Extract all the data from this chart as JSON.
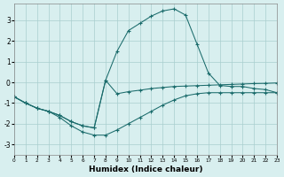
{
  "xlabel": "Humidex (Indice chaleur)",
  "bg_color": "#d8efef",
  "line_color": "#1a6b6b",
  "grid_color": "#aacece",
  "xlim": [
    0,
    23
  ],
  "ylim": [
    -3.5,
    3.8
  ],
  "xticks": [
    0,
    1,
    2,
    3,
    4,
    5,
    6,
    7,
    8,
    9,
    10,
    11,
    12,
    13,
    14,
    15,
    16,
    17,
    18,
    19,
    20,
    21,
    22,
    23
  ],
  "yticks": [
    -3,
    -2,
    -1,
    0,
    1,
    2,
    3
  ],
  "curve_upper_x": [
    0,
    1,
    2,
    3,
    4,
    5,
    6,
    7,
    8,
    9,
    10,
    11,
    12,
    13,
    14,
    15,
    16,
    17,
    18,
    19,
    20,
    21,
    22,
    23
  ],
  "curve_upper_y": [
    -0.7,
    -1.0,
    -1.25,
    -1.4,
    -1.6,
    -1.9,
    -2.1,
    -2.2,
    0.1,
    1.5,
    2.5,
    2.85,
    3.2,
    3.45,
    3.55,
    3.25,
    1.85,
    0.45,
    -0.15,
    -0.2,
    -0.2,
    -0.3,
    -0.35,
    -0.5
  ],
  "curve_lower_x": [
    0,
    1,
    2,
    3,
    4,
    5,
    6,
    7,
    8,
    9,
    10,
    11,
    12,
    13,
    14,
    15,
    16,
    17,
    18,
    19,
    20,
    21,
    22,
    23
  ],
  "curve_lower_y": [
    -0.7,
    -1.0,
    -1.25,
    -1.4,
    -1.6,
    -1.9,
    -2.1,
    -2.2,
    0.1,
    -0.55,
    -0.45,
    -0.38,
    -0.3,
    -0.25,
    -0.2,
    -0.18,
    -0.16,
    -0.14,
    -0.12,
    -0.1,
    -0.08,
    -0.06,
    -0.05,
    -0.03
  ],
  "curve_mid_x": [
    0,
    1,
    2,
    3,
    4,
    5,
    6,
    7,
    8,
    9,
    10,
    11,
    12,
    13,
    14,
    15,
    16,
    17,
    18,
    19,
    20,
    21,
    22,
    23
  ],
  "curve_mid_y": [
    -0.7,
    -1.0,
    -1.25,
    -1.4,
    -1.7,
    -2.1,
    -2.4,
    -2.55,
    -2.55,
    -2.3,
    -2.0,
    -1.7,
    -1.4,
    -1.1,
    -0.85,
    -0.65,
    -0.55,
    -0.5,
    -0.5,
    -0.5,
    -0.5,
    -0.5,
    -0.5,
    -0.5
  ]
}
